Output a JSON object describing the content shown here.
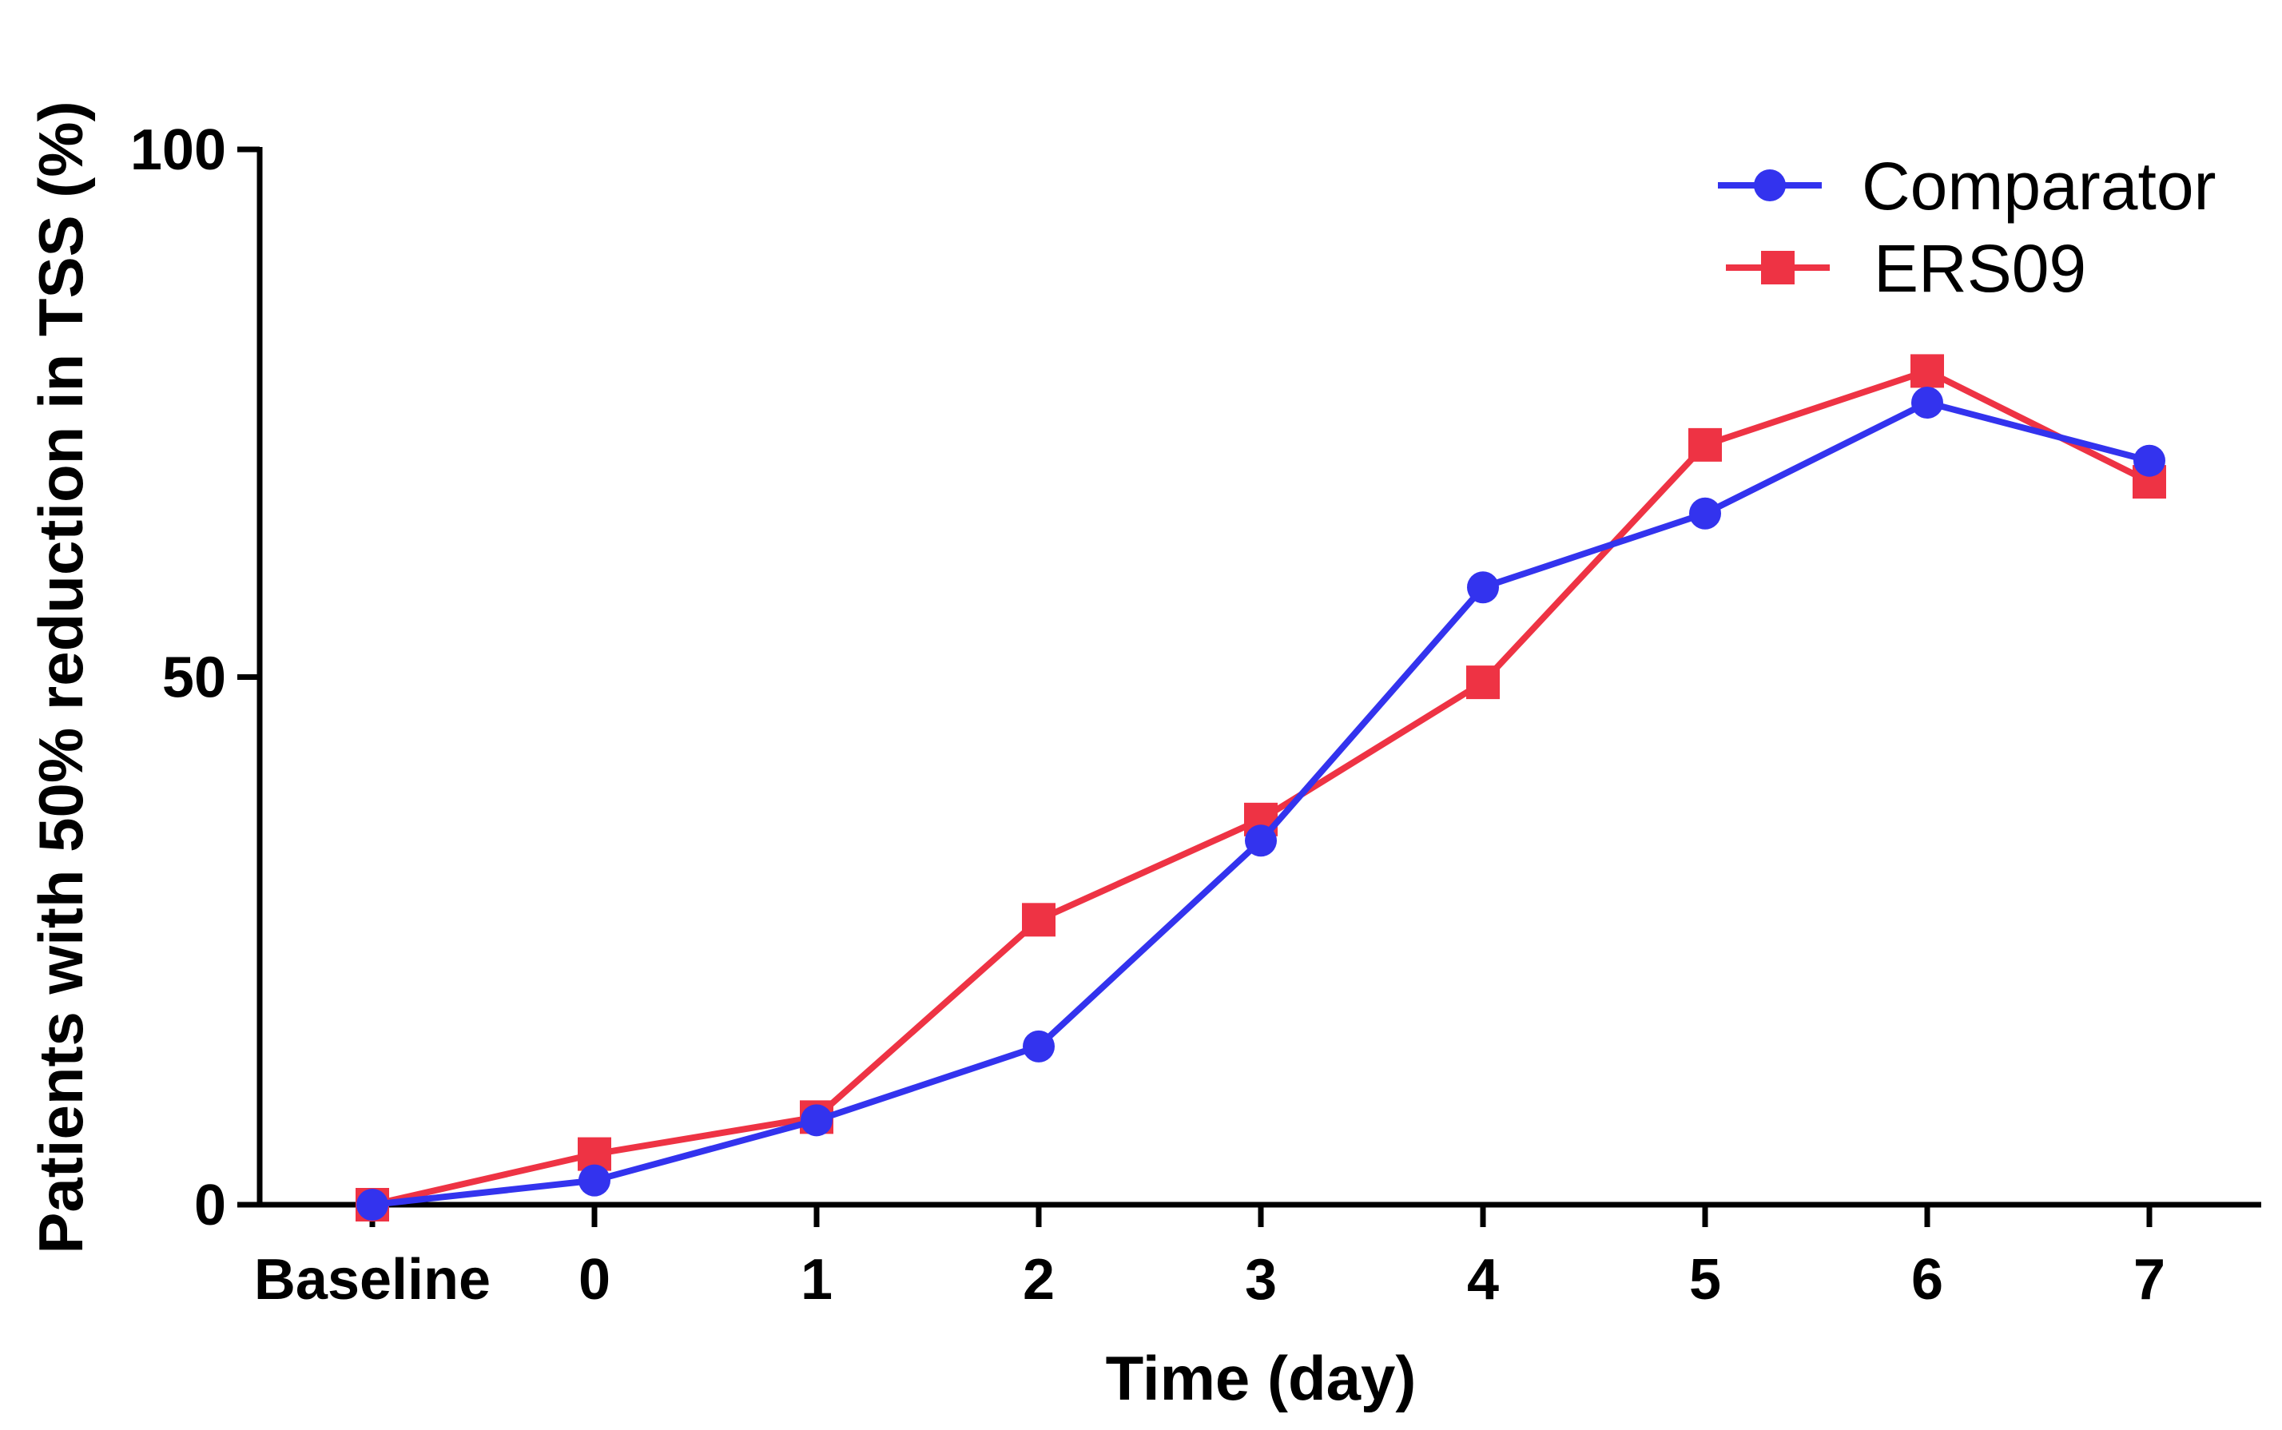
{
  "chart_data": {
    "type": "line",
    "title": "",
    "xlabel": "Time (day)",
    "ylabel": "Patients with 50%  reduction in TSS (%)",
    "categories": [
      "Baseline",
      "0",
      "1",
      "2",
      "3",
      "4",
      "5",
      "6",
      "7"
    ],
    "ylim": [
      0,
      100
    ],
    "yticks": [
      0,
      50,
      100
    ],
    "grid": false,
    "legend_position": "top-right",
    "series": [
      {
        "name": "Comparator",
        "marker": "circle",
        "color": "#3333ee",
        "values": [
          0,
          2.3,
          8,
          15,
          34.5,
          58.5,
          65.5,
          76,
          70.5
        ]
      },
      {
        "name": "ERS09",
        "marker": "square",
        "color": "#ee3344",
        "values": [
          0,
          4.8,
          8.3,
          27,
          36.5,
          49.5,
          72,
          79,
          68.5
        ]
      }
    ]
  }
}
